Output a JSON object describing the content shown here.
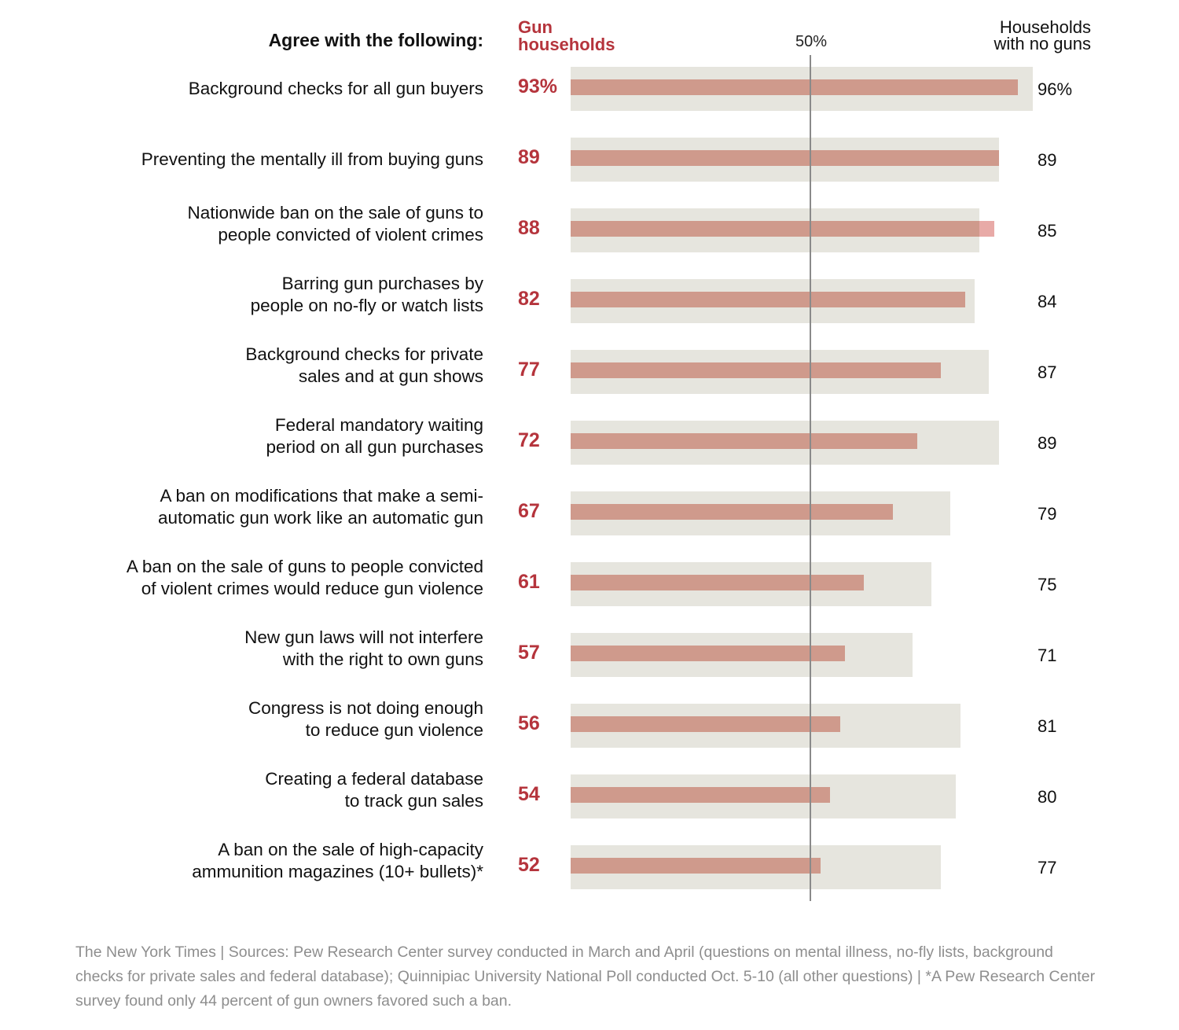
{
  "header": {
    "agree": "Agree with the following:",
    "gun_households": "Gun\nhouseholds",
    "midpoint": "50%",
    "no_gun_households": "Households\nwith no guns"
  },
  "source_text": "The New York Times | Sources: Pew Research Center survey conducted in March and April (questions on mental illness, no-fly lists, background checks for private sales and federal database); Quinnipiac University National Poll conducted Oct. 5-10 (all other questions)  |  *A Pew Research Center survey found only 44 percent of gun owners favored such a ban.",
  "colors": {
    "gun": "#cf9a8c",
    "gun_text": "#b5343c",
    "no_gun": "#e6e5de",
    "gun_over": "#e8aaa7",
    "midline": "#8a8a8a"
  },
  "chart_data": {
    "type": "bar",
    "unit": "%",
    "xlim": [
      0,
      100
    ],
    "reference_line": 50,
    "series": [
      {
        "name": "Gun households",
        "values": [
          93,
          89,
          88,
          82,
          77,
          72,
          67,
          61,
          57,
          56,
          54,
          52
        ]
      },
      {
        "name": "Households with no guns",
        "values": [
          96,
          89,
          85,
          84,
          87,
          89,
          79,
          75,
          71,
          81,
          80,
          77
        ]
      }
    ],
    "categories": [
      "Background checks for all gun buyers",
      "Preventing the mentally ill from buying guns",
      "Nationwide ban on the sale of guns to\npeople convicted of violent crimes",
      "Barring gun purchases by\npeople on no-fly or watch lists",
      "Background checks for private\nsales and at gun shows",
      "Federal mandatory waiting\nperiod on all gun purchases",
      "A ban on modifications that make a semi-\nautomatic gun work like an automatic gun",
      "A ban on the sale of guns to people convicted\nof violent crimes would reduce gun violence",
      "New gun laws will not interfere\nwith the right to own guns",
      "Congress is not doing enough\nto reduce gun violence",
      "Creating a federal database\nto track gun sales",
      "A ban on the sale of high-capacity\nammunition magazines (10+ bullets)*"
    ],
    "gun_labels": [
      "93%",
      "89",
      "88",
      "82",
      "77",
      "72",
      "67",
      "61",
      "57",
      "56",
      "54",
      "52"
    ],
    "no_gun_labels": [
      "96%",
      "89",
      "85",
      "84",
      "87",
      "89",
      "79",
      "75",
      "71",
      "81",
      "80",
      "77"
    ]
  }
}
